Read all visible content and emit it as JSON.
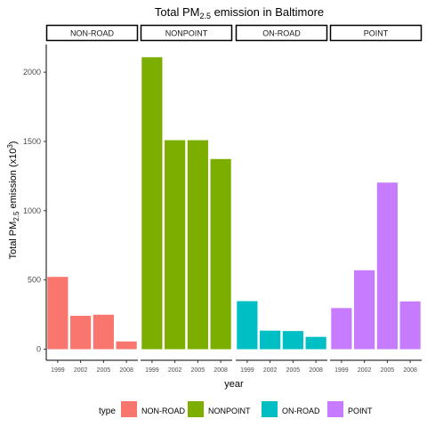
{
  "chart_data": {
    "type": "bar",
    "title": {
      "prefix": "Total PM",
      "sub": "2.5",
      "suffix": " emission in Baltimore"
    },
    "xlabel": "year",
    "ylabel": {
      "prefix": "Total PM",
      "sub": "2.5",
      "middle": " emission (x10",
      "sup": "3",
      "suffix": ")"
    },
    "ylim": [
      -80,
      2200
    ],
    "yticks": [
      0,
      500,
      1000,
      1500,
      2000
    ],
    "categories": [
      "1999",
      "2002",
      "2005",
      "2008"
    ],
    "legend": {
      "title": "type",
      "position": "bottom"
    },
    "grid": false,
    "series": [
      {
        "name": "NON-ROAD",
        "color": "#F8766D",
        "values": [
          522,
          241,
          249,
          56
        ]
      },
      {
        "name": "NONPOINT",
        "color": "#7CAE00",
        "values": [
          2108,
          1509,
          1509,
          1373
        ]
      },
      {
        "name": "ON-ROAD",
        "color": "#00BFC4",
        "values": [
          347,
          134,
          131,
          89
        ]
      },
      {
        "name": "POINT",
        "color": "#C77CFF",
        "values": [
          297,
          570,
          1203,
          345
        ]
      }
    ]
  }
}
